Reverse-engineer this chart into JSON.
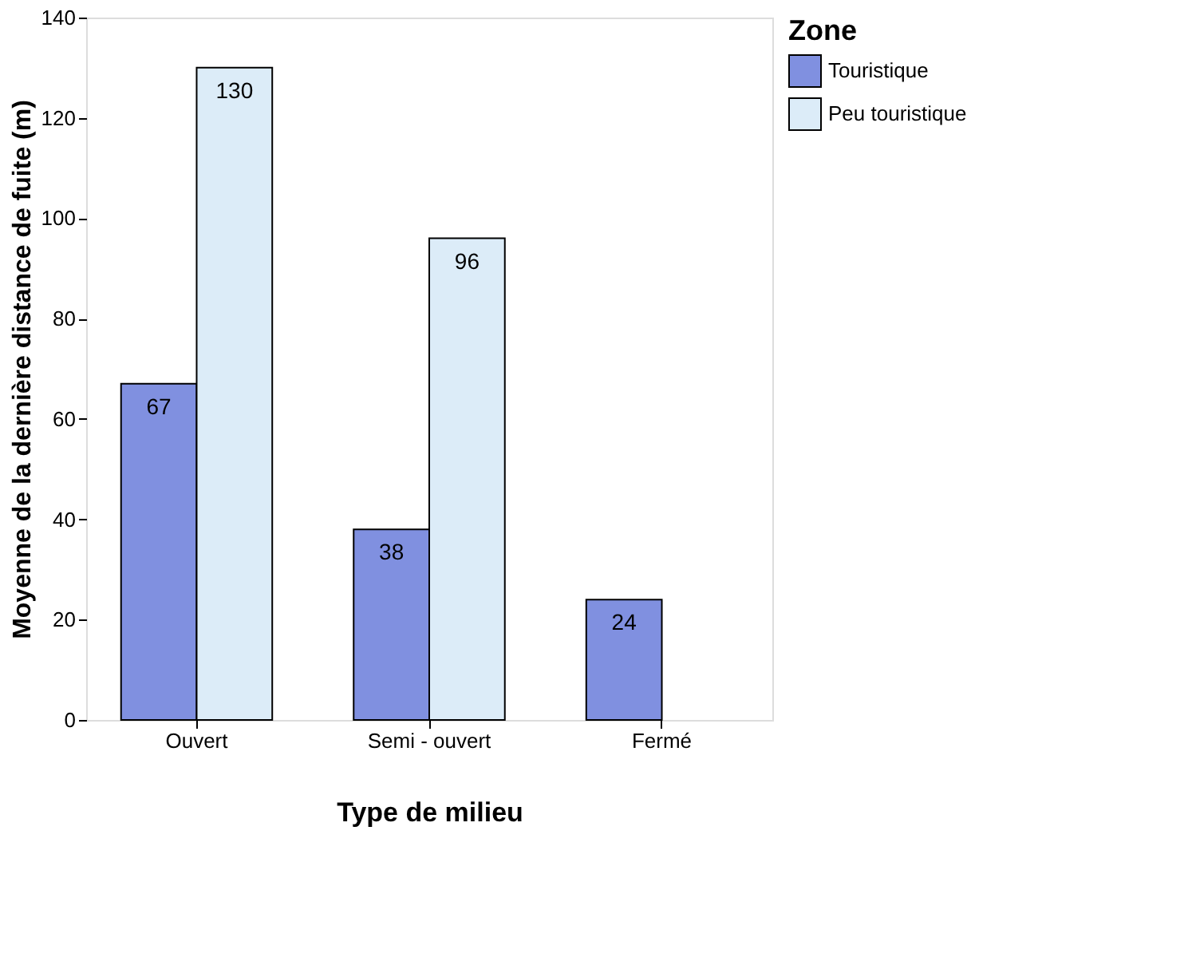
{
  "chart_data": {
    "type": "bar",
    "xlabel": "Type de milieu",
    "ylabel": "Moyenne de la dernière distance de fuite (m)",
    "legend_title": "Zone",
    "categories": [
      "Ouvert",
      "Semi - ouvert",
      "Fermé"
    ],
    "series": [
      {
        "name": "Touristique",
        "color": "#8090e0",
        "values": [
          67,
          38,
          24
        ]
      },
      {
        "name": "Peu touristique",
        "color": "#dcecf8",
        "values": [
          130,
          96,
          null
        ]
      }
    ],
    "ylim": [
      0,
      140
    ],
    "yticks": [
      0,
      20,
      40,
      60,
      80,
      100,
      120,
      140
    ],
    "grid": false,
    "legend": "right",
    "data_labels": true
  }
}
